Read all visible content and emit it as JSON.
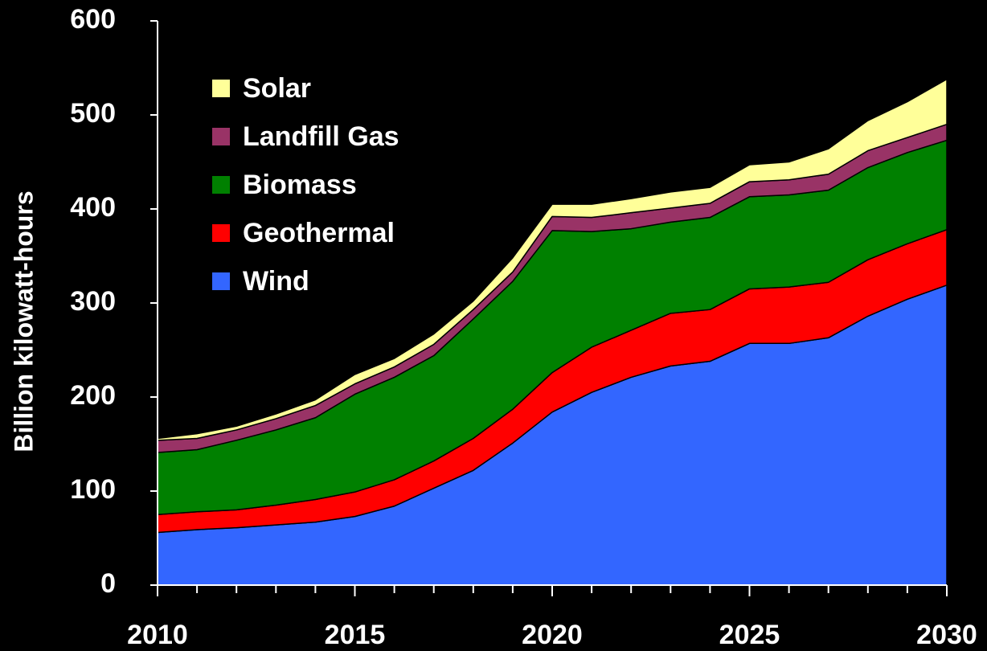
{
  "chart_data": {
    "type": "stacked_area",
    "y_label": "Billion kilowatt-hours",
    "x": [
      2010,
      2011,
      2012,
      2013,
      2014,
      2015,
      2016,
      2017,
      2018,
      2019,
      2020,
      2021,
      2022,
      2023,
      2024,
      2025,
      2026,
      2027,
      2028,
      2029,
      2030
    ],
    "series": [
      {
        "name": "Wind",
        "color": "#3366ff",
        "values": [
          56,
          59,
          61,
          64,
          67,
          73,
          84,
          103,
          122,
          151,
          184,
          205,
          221,
          233,
          238,
          257,
          257,
          263,
          286,
          304,
          319
        ]
      },
      {
        "name": "Geothermal",
        "color": "#ff0000",
        "values": [
          19,
          19,
          19,
          21,
          24,
          26,
          28,
          29,
          34,
          36,
          42,
          48,
          50,
          56,
          55,
          58,
          60,
          59,
          60,
          59,
          59
        ]
      },
      {
        "name": "Biomass",
        "color": "#008000",
        "values": [
          66,
          66,
          74,
          80,
          87,
          104,
          109,
          112,
          127,
          136,
          151,
          123,
          108,
          97,
          98,
          98,
          98,
          98,
          98,
          97,
          95
        ]
      },
      {
        "name": "Landfill Gas",
        "color": "#993366",
        "values": [
          13,
          12,
          11,
          12,
          13,
          11,
          11,
          12,
          10,
          10,
          15,
          15,
          17,
          15,
          15,
          16,
          16,
          17,
          18,
          16,
          17
        ]
      },
      {
        "name": "Solar",
        "color": "#ffff99",
        "values": [
          2,
          5,
          4,
          5,
          6,
          10,
          9,
          11,
          9,
          15,
          13,
          14,
          15,
          17,
          17,
          18,
          19,
          27,
          32,
          38,
          48
        ]
      }
    ],
    "xlim": [
      2010,
      2030
    ],
    "xticks": [
      2010,
      2015,
      2020,
      2025,
      2030
    ],
    "ylim": [
      0,
      600
    ],
    "yticks": [
      0,
      100,
      200,
      300,
      400,
      500,
      600
    ],
    "legend": "upper-left"
  }
}
